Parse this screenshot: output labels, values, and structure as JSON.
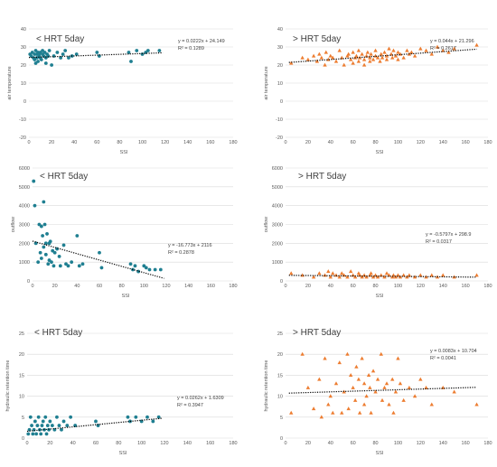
{
  "colors": {
    "teal": "#1f7f91",
    "orange": "#ed7d31",
    "grid": "#d9d9d9",
    "text": "#595959"
  },
  "chart_data": [
    {
      "type": "scatter",
      "title": "< HRT 5day",
      "xlabel": "SSI",
      "ylabel": "air temperature",
      "xlim": [
        0,
        180
      ],
      "ylim": [
        -20,
        40
      ],
      "xticks": [
        0,
        20,
        40,
        60,
        80,
        100,
        120,
        140,
        160,
        180
      ],
      "yticks": [
        -20,
        -10,
        0,
        10,
        20,
        30,
        40
      ],
      "marker": "circle",
      "color": "#1f7f91",
      "equation": "y = 0.0222x + 24.149",
      "r2": "R² = 0.1289",
      "trend": [
        0.0222,
        24.149
      ],
      "trend_x": [
        0,
        118
      ],
      "x": [
        1,
        2,
        3,
        4,
        5,
        5,
        6,
        6,
        7,
        7,
        8,
        8,
        9,
        9,
        10,
        10,
        11,
        12,
        12,
        13,
        14,
        15,
        15,
        16,
        17,
        18,
        20,
        22,
        25,
        28,
        30,
        32,
        35,
        38,
        42,
        60,
        62,
        88,
        90,
        95,
        100,
        103,
        105,
        115
      ],
      "y": [
        26,
        25,
        27,
        24,
        26,
        23,
        28,
        21,
        26,
        24,
        27,
        22,
        25,
        26,
        24,
        27,
        23,
        26,
        28,
        25,
        27,
        24,
        21,
        26,
        25,
        28,
        20,
        25,
        27,
        24,
        26,
        28,
        24,
        25,
        26,
        27,
        25,
        27,
        22,
        28,
        26,
        27,
        28,
        28
      ]
    },
    {
      "type": "scatter",
      "title": "> HRT 5day",
      "xlabel": "SSI",
      "ylabel": "air temperature",
      "xlim": [
        0,
        180
      ],
      "ylim": [
        -20,
        40
      ],
      "xticks": [
        0,
        20,
        40,
        60,
        80,
        100,
        120,
        140,
        160,
        180
      ],
      "yticks": [
        -20,
        -10,
        0,
        10,
        20,
        30,
        40
      ],
      "marker": "triangle",
      "color": "#ed7d31",
      "equation": "y = 0.044x + 21.296",
      "r2": "R² = 0.2617",
      "trend": [
        0.044,
        21.296
      ],
      "trend_x": [
        3,
        170
      ],
      "x": [
        5,
        15,
        20,
        25,
        28,
        30,
        32,
        35,
        36,
        38,
        40,
        42,
        45,
        48,
        50,
        52,
        55,
        56,
        58,
        60,
        60,
        62,
        63,
        65,
        65,
        66,
        68,
        70,
        70,
        72,
        73,
        75,
        75,
        76,
        78,
        80,
        80,
        82,
        84,
        85,
        86,
        88,
        90,
        90,
        92,
        94,
        95,
        96,
        98,
        100,
        100,
        102,
        105,
        108,
        110,
        112,
        115,
        120,
        125,
        130,
        135,
        140,
        145,
        150,
        170
      ],
      "y": [
        21,
        24,
        23,
        25,
        22,
        26,
        24,
        20,
        27,
        23,
        25,
        24,
        22,
        28,
        24,
        20,
        25,
        26,
        23,
        27,
        21,
        24,
        25,
        22,
        28,
        24,
        26,
        23,
        20,
        25,
        27,
        24,
        22,
        26,
        23,
        25,
        28,
        24,
        22,
        26,
        24,
        27,
        23,
        25,
        29,
        26,
        24,
        28,
        25,
        27,
        23,
        26,
        24,
        28,
        26,
        27,
        25,
        29,
        28,
        26,
        30,
        28,
        27,
        29,
        31
      ]
    },
    {
      "type": "scatter",
      "title": "< HRT 5day",
      "xlabel": "SSI",
      "ylabel": "outflow",
      "xlim": [
        0,
        180
      ],
      "ylim": [
        0,
        6000
      ],
      "xticks": [
        0,
        20,
        40,
        60,
        80,
        100,
        120,
        140,
        160,
        180
      ],
      "yticks": [
        0,
        1000,
        2000,
        3000,
        4000,
        5000,
        6000
      ],
      "marker": "circle",
      "color": "#1f7f91",
      "equation": "y = -16.773x + 2116",
      "r2": "R² = 0.2878",
      "trend": [
        -16.773,
        2116
      ],
      "trend_x": [
        0,
        118
      ],
      "x": [
        1,
        2,
        3,
        5,
        6,
        7,
        8,
        8,
        9,
        10,
        10,
        11,
        12,
        12,
        13,
        14,
        15,
        15,
        16,
        17,
        18,
        19,
        20,
        22,
        24,
        25,
        28,
        30,
        32,
        35,
        40,
        42,
        45,
        60,
        62,
        88,
        90,
        92,
        95,
        100,
        102,
        105,
        110,
        115
      ],
      "y": [
        5300,
        4000,
        2000,
        1000,
        3000,
        1500,
        2900,
        1200,
        2400,
        4200,
        1800,
        3000,
        2000,
        1400,
        2500,
        900,
        2000,
        1100,
        2100,
        1000,
        1600,
        800,
        1500,
        1700,
        1300,
        800,
        1900,
        900,
        800,
        1000,
        2400,
        800,
        900,
        1500,
        700,
        900,
        600,
        800,
        500,
        800,
        700,
        600,
        600,
        600
      ]
    },
    {
      "type": "scatter",
      "title": "> HRT 5day",
      "xlabel": "SSI",
      "ylabel": "outflow",
      "xlim": [
        0,
        180
      ],
      "ylim": [
        0,
        6000
      ],
      "xticks": [
        0,
        20,
        40,
        60,
        80,
        100,
        120,
        140,
        160,
        180
      ],
      "yticks": [
        0,
        1000,
        2000,
        3000,
        4000,
        5000,
        6000
      ],
      "marker": "triangle",
      "color": "#ed7d31",
      "equation": "y = -0.5797x + 298.9",
      "r2": "R² = 0.0317",
      "trend": [
        -0.5797,
        298.9
      ],
      "trend_x": [
        3,
        170
      ],
      "x": [
        5,
        15,
        25,
        30,
        35,
        38,
        40,
        42,
        45,
        48,
        50,
        52,
        55,
        58,
        60,
        62,
        65,
        66,
        68,
        70,
        72,
        75,
        76,
        78,
        80,
        82,
        85,
        88,
        90,
        92,
        95,
        96,
        98,
        100,
        102,
        105,
        108,
        110,
        115,
        120,
        125,
        130,
        135,
        140,
        150,
        170
      ],
      "y": [
        400,
        300,
        200,
        400,
        300,
        500,
        200,
        400,
        300,
        200,
        400,
        300,
        200,
        500,
        300,
        200,
        400,
        300,
        200,
        300,
        200,
        300,
        400,
        200,
        300,
        200,
        300,
        200,
        400,
        300,
        200,
        300,
        200,
        300,
        200,
        300,
        200,
        300,
        200,
        300,
        200,
        300,
        200,
        300,
        200,
        300
      ]
    },
    {
      "type": "scatter",
      "title": "< HRT 5day",
      "xlabel": "SSI",
      "ylabel": "hydraulic retention time",
      "xlim": [
        0,
        180
      ],
      "ylim": [
        0,
        25
      ],
      "xticks": [
        0,
        20,
        40,
        60,
        80,
        100,
        120,
        140,
        160,
        180
      ],
      "yticks": [
        0,
        5,
        10,
        15,
        20,
        25
      ],
      "marker": "circle",
      "color": "#1f7f91",
      "equation": "y = 0.0262x + 1.6309",
      "r2": "R² = 0.3947",
      "trend": [
        0.0262,
        1.6309
      ],
      "trend_x": [
        0,
        118
      ],
      "x": [
        1,
        2,
        3,
        4,
        5,
        6,
        7,
        8,
        9,
        10,
        11,
        12,
        13,
        14,
        15,
        16,
        17,
        18,
        19,
        20,
        22,
        24,
        26,
        28,
        30,
        32,
        35,
        38,
        42,
        60,
        62,
        88,
        90,
        95,
        100,
        105,
        110,
        115
      ],
      "y": [
        1,
        2,
        5,
        3,
        1,
        2,
        4,
        1,
        3,
        5,
        2,
        1,
        3,
        4,
        2,
        5,
        1,
        3,
        2,
        4,
        3,
        2,
        5,
        3,
        2,
        4,
        3,
        5,
        3,
        4,
        3,
        5,
        4,
        5,
        4,
        5,
        4,
        5
      ]
    },
    {
      "type": "scatter",
      "title": "> HRT 5day",
      "xlabel": "SSI",
      "ylabel": "hydraulic retention time",
      "xlim": [
        0,
        180
      ],
      "ylim": [
        0,
        25
      ],
      "xticks": [
        0,
        20,
        40,
        60,
        80,
        100,
        120,
        140,
        160,
        180
      ],
      "yticks": [
        0,
        5,
        10,
        15,
        20,
        25
      ],
      "marker": "triangle",
      "color": "#ed7d31",
      "equation": "y = 0.0083x + 10.704",
      "r2": "R² = 0.0041",
      "trend": [
        0.0083,
        10.704
      ],
      "trend_x": [
        3,
        170
      ],
      "x": [
        5,
        15,
        20,
        25,
        30,
        32,
        35,
        38,
        40,
        42,
        45,
        48,
        50,
        52,
        55,
        56,
        58,
        60,
        62,
        63,
        65,
        66,
        68,
        70,
        70,
        72,
        74,
        75,
        76,
        78,
        80,
        82,
        85,
        86,
        88,
        90,
        92,
        95,
        96,
        98,
        100,
        102,
        105,
        110,
        115,
        120,
        125,
        130,
        140,
        150,
        170
      ],
      "y": [
        6,
        20,
        12,
        7,
        14,
        5,
        19,
        8,
        10,
        6,
        13,
        18,
        6,
        11,
        20,
        7,
        15,
        12,
        9,
        17,
        14,
        6,
        19,
        13,
        8,
        10,
        15,
        12,
        6,
        16,
        11,
        14,
        20,
        9,
        12,
        13,
        8,
        14,
        6,
        11,
        19,
        13,
        9,
        12,
        10,
        14,
        12,
        8,
        12,
        11,
        8
      ]
    }
  ]
}
